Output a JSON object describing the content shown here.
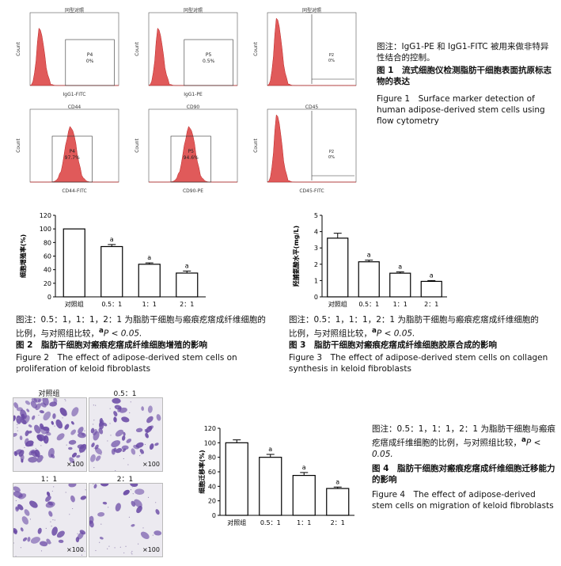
{
  "fig1": {
    "panels": [
      {
        "title": "同型对照",
        "xlabel": "IgG1-FITC",
        "ylabel": "Count",
        "gate": "P4",
        "pct": "0%"
      },
      {
        "title": "同型对照",
        "xlabel": "IgG1-PE",
        "ylabel": "Count",
        "gate": "P5",
        "pct": "0.5%"
      },
      {
        "title": "同型对照",
        "xlabel": "",
        "ylabel": "Count",
        "gate": "P2",
        "pct": "0%"
      },
      {
        "title": "CD44",
        "xlabel": "CD44-FITC",
        "ylabel": "Count",
        "gate": "P4",
        "pct": "97.7%"
      },
      {
        "title": "CD90",
        "xlabel": "CD90-PE",
        "ylabel": "Count",
        "gate": "P5",
        "pct": "94.6%"
      },
      {
        "title": "CD45",
        "xlabel": "CD45-FITC",
        "ylabel": "Count",
        "gate": "P2",
        "pct": "0%"
      }
    ],
    "note": "图注：IgG1-PE 和 IgG1-FITC 被用来做非特异性结合的控制。",
    "title_cn": "图 1　流式细胞仪检测脂肪干细胞表面抗原标志物的表达",
    "title_en": "Figure 1　Surface marker detection of human adipose-derived stem cells using flow cytometry"
  },
  "fig2": {
    "note_line1": "图注：0.5：1，1：1，2：1 为脂肪干细胞与瘢痕疙瘩成纤维细胞的",
    "note_line2": "比例，与对照组比较，",
    "note_sig": "a",
    "note_p": "P < 0.05.",
    "title_cn": "图 2　脂肪干细胞对瘢痕疙瘩成纤维细胞增殖的影响",
    "title_en": "Figure 2　The effect of adipose-derived stem cells on proliferation of keloid fibroblasts"
  },
  "fig3": {
    "note_line1": "图注：0.5：1，1：1，2：1 为脂肪干细胞与瘢痕疙瘩成纤维细胞的",
    "note_line2": "比例，与对照组比较，",
    "note_sig": "a",
    "note_p": "P < 0.05.",
    "title_cn": "图 3　脂肪干细胞对瘢痕疙瘩成纤维细胞胶原合成的影响",
    "title_en": "Figure 3　The effect of adipose-derived stem cells on collagen synthesis in keloid fibroblasts"
  },
  "fig4": {
    "photo_labels": [
      "对照组",
      "0.5：1",
      "1：1",
      "2：1"
    ],
    "magnification": "×100",
    "note": "图注：0.5：1，1：1，2：1 为脂肪干细胞与瘢痕疙瘩成纤维细胞的比例，与对照组比较，",
    "note_sig": "a",
    "note_p": "P < 0.05.",
    "title_cn": "图 4　脂肪干细胞对瘢痕疙瘩成纤维细胞迁移能力的影响",
    "title_en": "Figure 4　The effect of adipose-derived stem cells on migration of keloid fibroblasts"
  },
  "chart_data": [
    {
      "type": "bar",
      "categories": [
        "对照组",
        "0.5：1",
        "1：1",
        "2：1"
      ],
      "values": [
        100,
        74,
        48,
        35
      ],
      "errors": [
        0,
        3,
        2,
        3
      ],
      "annotations": [
        "",
        "a",
        "a",
        "a"
      ],
      "ylabel": "细胞增殖率(%)",
      "yticks": [
        0,
        20,
        40,
        60,
        80,
        100,
        120
      ],
      "ylim": [
        0,
        120
      ]
    },
    {
      "type": "bar",
      "categories": [
        "对照组",
        "0.5：1",
        "1：1",
        "2：1"
      ],
      "values": [
        3.6,
        2.15,
        1.45,
        0.95
      ],
      "errors": [
        0.3,
        0.1,
        0.08,
        0.05
      ],
      "annotations": [
        "",
        "a",
        "a",
        "a"
      ],
      "ylabel": "羟脯氨酸水平(mg/L)",
      "yticks": [
        0,
        1,
        2,
        3,
        4,
        5
      ],
      "ylim": [
        0,
        5
      ]
    },
    {
      "type": "bar",
      "categories": [
        "对照组",
        "0.5：1",
        "1：1",
        "2：1"
      ],
      "values": [
        100,
        80,
        55,
        37
      ],
      "errors": [
        4,
        4,
        4,
        2
      ],
      "annotations": [
        "",
        "a",
        "a",
        "a"
      ],
      "ylabel": "细胞迁移率(%)",
      "yticks": [
        0,
        20,
        40,
        60,
        80,
        100,
        120
      ],
      "ylim": [
        0,
        120
      ]
    }
  ]
}
